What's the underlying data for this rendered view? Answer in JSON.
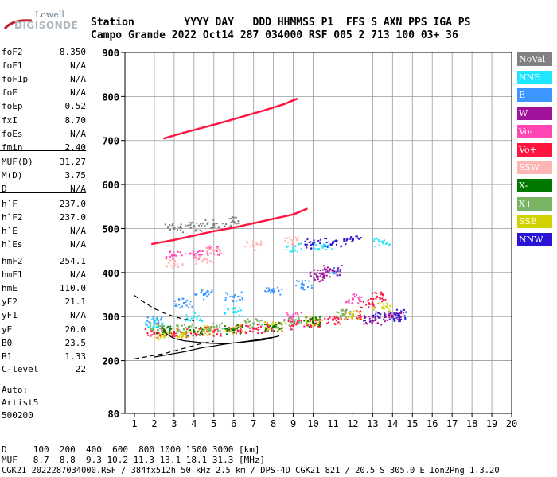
{
  "logo": {
    "top_text": "Lowell",
    "bottom_text": "DIGISONDE"
  },
  "header": {
    "row1": "Station        YYYY DAY   DDD HHMMSS P1  FFS S AXN PPS IGA PS",
    "row2": "Campo Grande 2022 Oct14 287 034000 RSF 005 2 713 100 03+ 36"
  },
  "left_panel": {
    "group1": [
      {
        "key": "foF2",
        "value": "8.350"
      },
      {
        "key": "foF1",
        "value": "N/A"
      },
      {
        "key": "foF1p",
        "value": "N/A"
      },
      {
        "key": "foE",
        "value": "N/A"
      },
      {
        "key": "foEp",
        "value": "0.52"
      },
      {
        "key": "fxI",
        "value": "8.70"
      },
      {
        "key": "foEs",
        "value": "N/A"
      },
      {
        "key": "fmin",
        "value": "2.40"
      }
    ],
    "group2": [
      {
        "key": "MUF(D)",
        "value": "31.27"
      },
      {
        "key": "M(D)",
        "value": "3.75"
      },
      {
        "key": "D",
        "value": "N/A"
      }
    ],
    "group3": [
      {
        "key": "h`F",
        "value": "237.0"
      },
      {
        "key": "h`F2",
        "value": "237.0"
      },
      {
        "key": "h`E",
        "value": "N/A"
      },
      {
        "key": "h`Es",
        "value": "N/A"
      }
    ],
    "group4": [
      {
        "key": "hmF2",
        "value": "254.1"
      },
      {
        "key": "hmF1",
        "value": "N/A"
      },
      {
        "key": "hmE",
        "value": "110.0"
      },
      {
        "key": "yF2",
        "value": "21.1"
      },
      {
        "key": "yF1",
        "value": "N/A"
      },
      {
        "key": "yE",
        "value": "20.0"
      },
      {
        "key": "B0",
        "value": "23.5"
      },
      {
        "key": "B1",
        "value": "1.33"
      }
    ],
    "group5": [
      {
        "key": "C-level",
        "value": "22"
      }
    ],
    "auto_lines": [
      "Auto:",
      "Artist5",
      "500200"
    ]
  },
  "legend": [
    {
      "label": "NoVal",
      "color": "#808080"
    },
    {
      "label": "NNE",
      "color": "#1ee6ff"
    },
    {
      "label": "E",
      "color": "#3c96ff"
    },
    {
      "label": "W",
      "color": "#a0129a"
    },
    {
      "label": "Vo-",
      "color": "#ff46b4"
    },
    {
      "label": "Vo+",
      "color": "#ff1440"
    },
    {
      "label": "SSW",
      "color": "#ffb4b4"
    },
    {
      "label": "X-",
      "color": "#007800"
    },
    {
      "label": "X+",
      "color": "#78b464"
    },
    {
      "label": "SSE",
      "color": "#d2d200"
    },
    {
      "label": "NNW",
      "color": "#2814d2"
    }
  ],
  "footer": {
    "line1": "D     100  200  400  600  800 1000 1500 3000 [km]",
    "line2": "MUF   8.7  8.8  9.3 10.2 11.3 13.1 18.1 31.3 [MHz]",
    "line3": "CGK21_2022287034000.RSF / 384fx512h 50 kHz 2.5 km / DPS-4D CGK21 821 / 20.5 S 305.0 E Ion2Png 1.3.20"
  },
  "chart_data": {
    "type": "scatter",
    "xlim": [
      1,
      20
    ],
    "ylim": [
      80,
      900
    ],
    "x_ticks": [
      1,
      2,
      3,
      4,
      5,
      6,
      7,
      8,
      9,
      10,
      11,
      12,
      13,
      14,
      15,
      16,
      17,
      18,
      19,
      20
    ],
    "y_ticks": [
      80,
      200,
      300,
      400,
      500,
      600,
      700,
      800,
      900
    ],
    "grid": true,
    "legend_position": "right",
    "series": [
      {
        "name": "Vo+",
        "color": "#ff1440",
        "points": [
          [
            2.0,
            262
          ],
          [
            3.0,
            262
          ],
          [
            4.0,
            264
          ],
          [
            5.0,
            266
          ],
          [
            6.0,
            270
          ],
          [
            7.0,
            273
          ],
          [
            8.0,
            276
          ],
          [
            9.0,
            280
          ],
          [
            10.0,
            286
          ],
          [
            11.0,
            293
          ],
          [
            12.0,
            304
          ],
          [
            12.8,
            330
          ],
          [
            13.2,
            345
          ]
        ]
      },
      {
        "name": "SSE",
        "color": "#d2d200",
        "points": [
          [
            2.5,
            258
          ],
          [
            3.5,
            262
          ],
          [
            4.5,
            268
          ],
          [
            6.0,
            272
          ],
          [
            8.0,
            280
          ],
          [
            10.0,
            290
          ],
          [
            12.0,
            305
          ],
          [
            13.5,
            320
          ]
        ]
      },
      {
        "name": "NNW",
        "color": "#2814d2",
        "points": [
          [
            10.0,
            465
          ],
          [
            11.0,
            468
          ],
          [
            12.0,
            475
          ],
          [
            13.0,
            300
          ],
          [
            14.0,
            300
          ],
          [
            14.3,
            305
          ]
        ]
      },
      {
        "name": "E",
        "color": "#3c96ff",
        "points": [
          [
            2.0,
            290
          ],
          [
            3.5,
            330
          ],
          [
            4.5,
            350
          ],
          [
            6.0,
            345
          ],
          [
            8.0,
            358
          ],
          [
            9.5,
            372
          ],
          [
            11.0,
            400
          ]
        ]
      },
      {
        "name": "W",
        "color": "#a0129a",
        "points": [
          [
            10.2,
            390
          ],
          [
            10.5,
            398
          ],
          [
            11.0,
            405
          ],
          [
            13.0,
            290
          ],
          [
            14.0,
            300
          ]
        ]
      },
      {
        "name": "X+",
        "color": "#78b464",
        "points": [
          [
            2.2,
            280
          ],
          [
            3.5,
            272
          ],
          [
            5.0,
            276
          ],
          [
            7.0,
            284
          ],
          [
            9.0,
            290
          ],
          [
            11.5,
            305
          ]
        ]
      },
      {
        "name": "X-",
        "color": "#007800",
        "points": [
          [
            2.5,
            268
          ],
          [
            4.0,
            266
          ],
          [
            6.0,
            270
          ],
          [
            8.0,
            276
          ],
          [
            10.0,
            288
          ]
        ]
      },
      {
        "name": "Vo-",
        "color": "#ff46b4",
        "points": [
          [
            3.0,
            440
          ],
          [
            4.0,
            440
          ],
          [
            5.0,
            450
          ],
          [
            9.0,
            300
          ],
          [
            12.0,
            340
          ]
        ]
      },
      {
        "name": "NNE",
        "color": "#1ee6ff",
        "points": [
          [
            2.0,
            285
          ],
          [
            4.0,
            300
          ],
          [
            6.0,
            310
          ],
          [
            9.0,
            455
          ],
          [
            10.5,
            460
          ],
          [
            13.5,
            470
          ]
        ]
      },
      {
        "name": "SSW",
        "color": "#ffb4b4",
        "points": [
          [
            3.0,
            420
          ],
          [
            4.5,
            430
          ],
          [
            5.0,
            450
          ],
          [
            7.0,
            460
          ],
          [
            9.0,
            470
          ]
        ]
      },
      {
        "name": "NoVal",
        "color": "#808080",
        "points": [
          [
            3.0,
            500
          ],
          [
            4.0,
            505
          ],
          [
            5.0,
            510
          ],
          [
            6.0,
            515
          ]
        ]
      }
    ],
    "traces": [
      {
        "name": "F2 trace (Vo+ second hop)",
        "color": "#ff1440",
        "points": [
          [
            1.9,
            465
          ],
          [
            3.0,
            474
          ],
          [
            4.0,
            484
          ],
          [
            5.0,
            494
          ],
          [
            6.0,
            502
          ],
          [
            7.0,
            512
          ],
          [
            8.0,
            522
          ],
          [
            9.0,
            532
          ],
          [
            9.7,
            545
          ]
        ]
      },
      {
        "name": "F2 trace (third hop)",
        "color": "#ff1440",
        "points": [
          [
            2.5,
            705
          ],
          [
            3.5,
            718
          ],
          [
            4.5,
            730
          ],
          [
            5.5,
            742
          ],
          [
            6.5,
            755
          ],
          [
            7.5,
            768
          ],
          [
            8.5,
            782
          ],
          [
            9.2,
            795
          ]
        ]
      }
    ],
    "profile_solid": [
      [
        2.0,
        208
      ],
      [
        2.5,
        212
      ],
      [
        3.0,
        216
      ],
      [
        3.5,
        220
      ],
      [
        4.0,
        225
      ],
      [
        4.5,
        230
      ],
      [
        5.0,
        233
      ],
      [
        5.5,
        237
      ],
      [
        6.0,
        240
      ],
      [
        6.5,
        243
      ],
      [
        7.0,
        246
      ],
      [
        7.5,
        250
      ],
      [
        8.0,
        253
      ],
      [
        8.3,
        256
      ],
      [
        7.5,
        247
      ],
      [
        6.5,
        242
      ],
      [
        5.5,
        238
      ],
      [
        4.5,
        240
      ],
      [
        3.5,
        245
      ],
      [
        3.0,
        250
      ],
      [
        2.7,
        258
      ],
      [
        2.5,
        266
      ]
    ],
    "profile_dashed": [
      [
        1.0,
        204
      ],
      [
        1.5,
        208
      ],
      [
        2.0,
        212
      ],
      [
        2.5,
        216
      ],
      [
        3.0,
        222
      ],
      [
        3.5,
        228
      ],
      [
        4.0,
        234
      ],
      [
        4.5,
        240
      ],
      [
        5.0,
        244
      ]
    ],
    "profile_dashed_upper": [
      [
        1.0,
        348
      ],
      [
        1.5,
        332
      ],
      [
        2.0,
        318
      ],
      [
        2.5,
        308
      ],
      [
        3.0,
        300
      ],
      [
        3.5,
        294
      ],
      [
        4.0,
        290
      ]
    ]
  }
}
